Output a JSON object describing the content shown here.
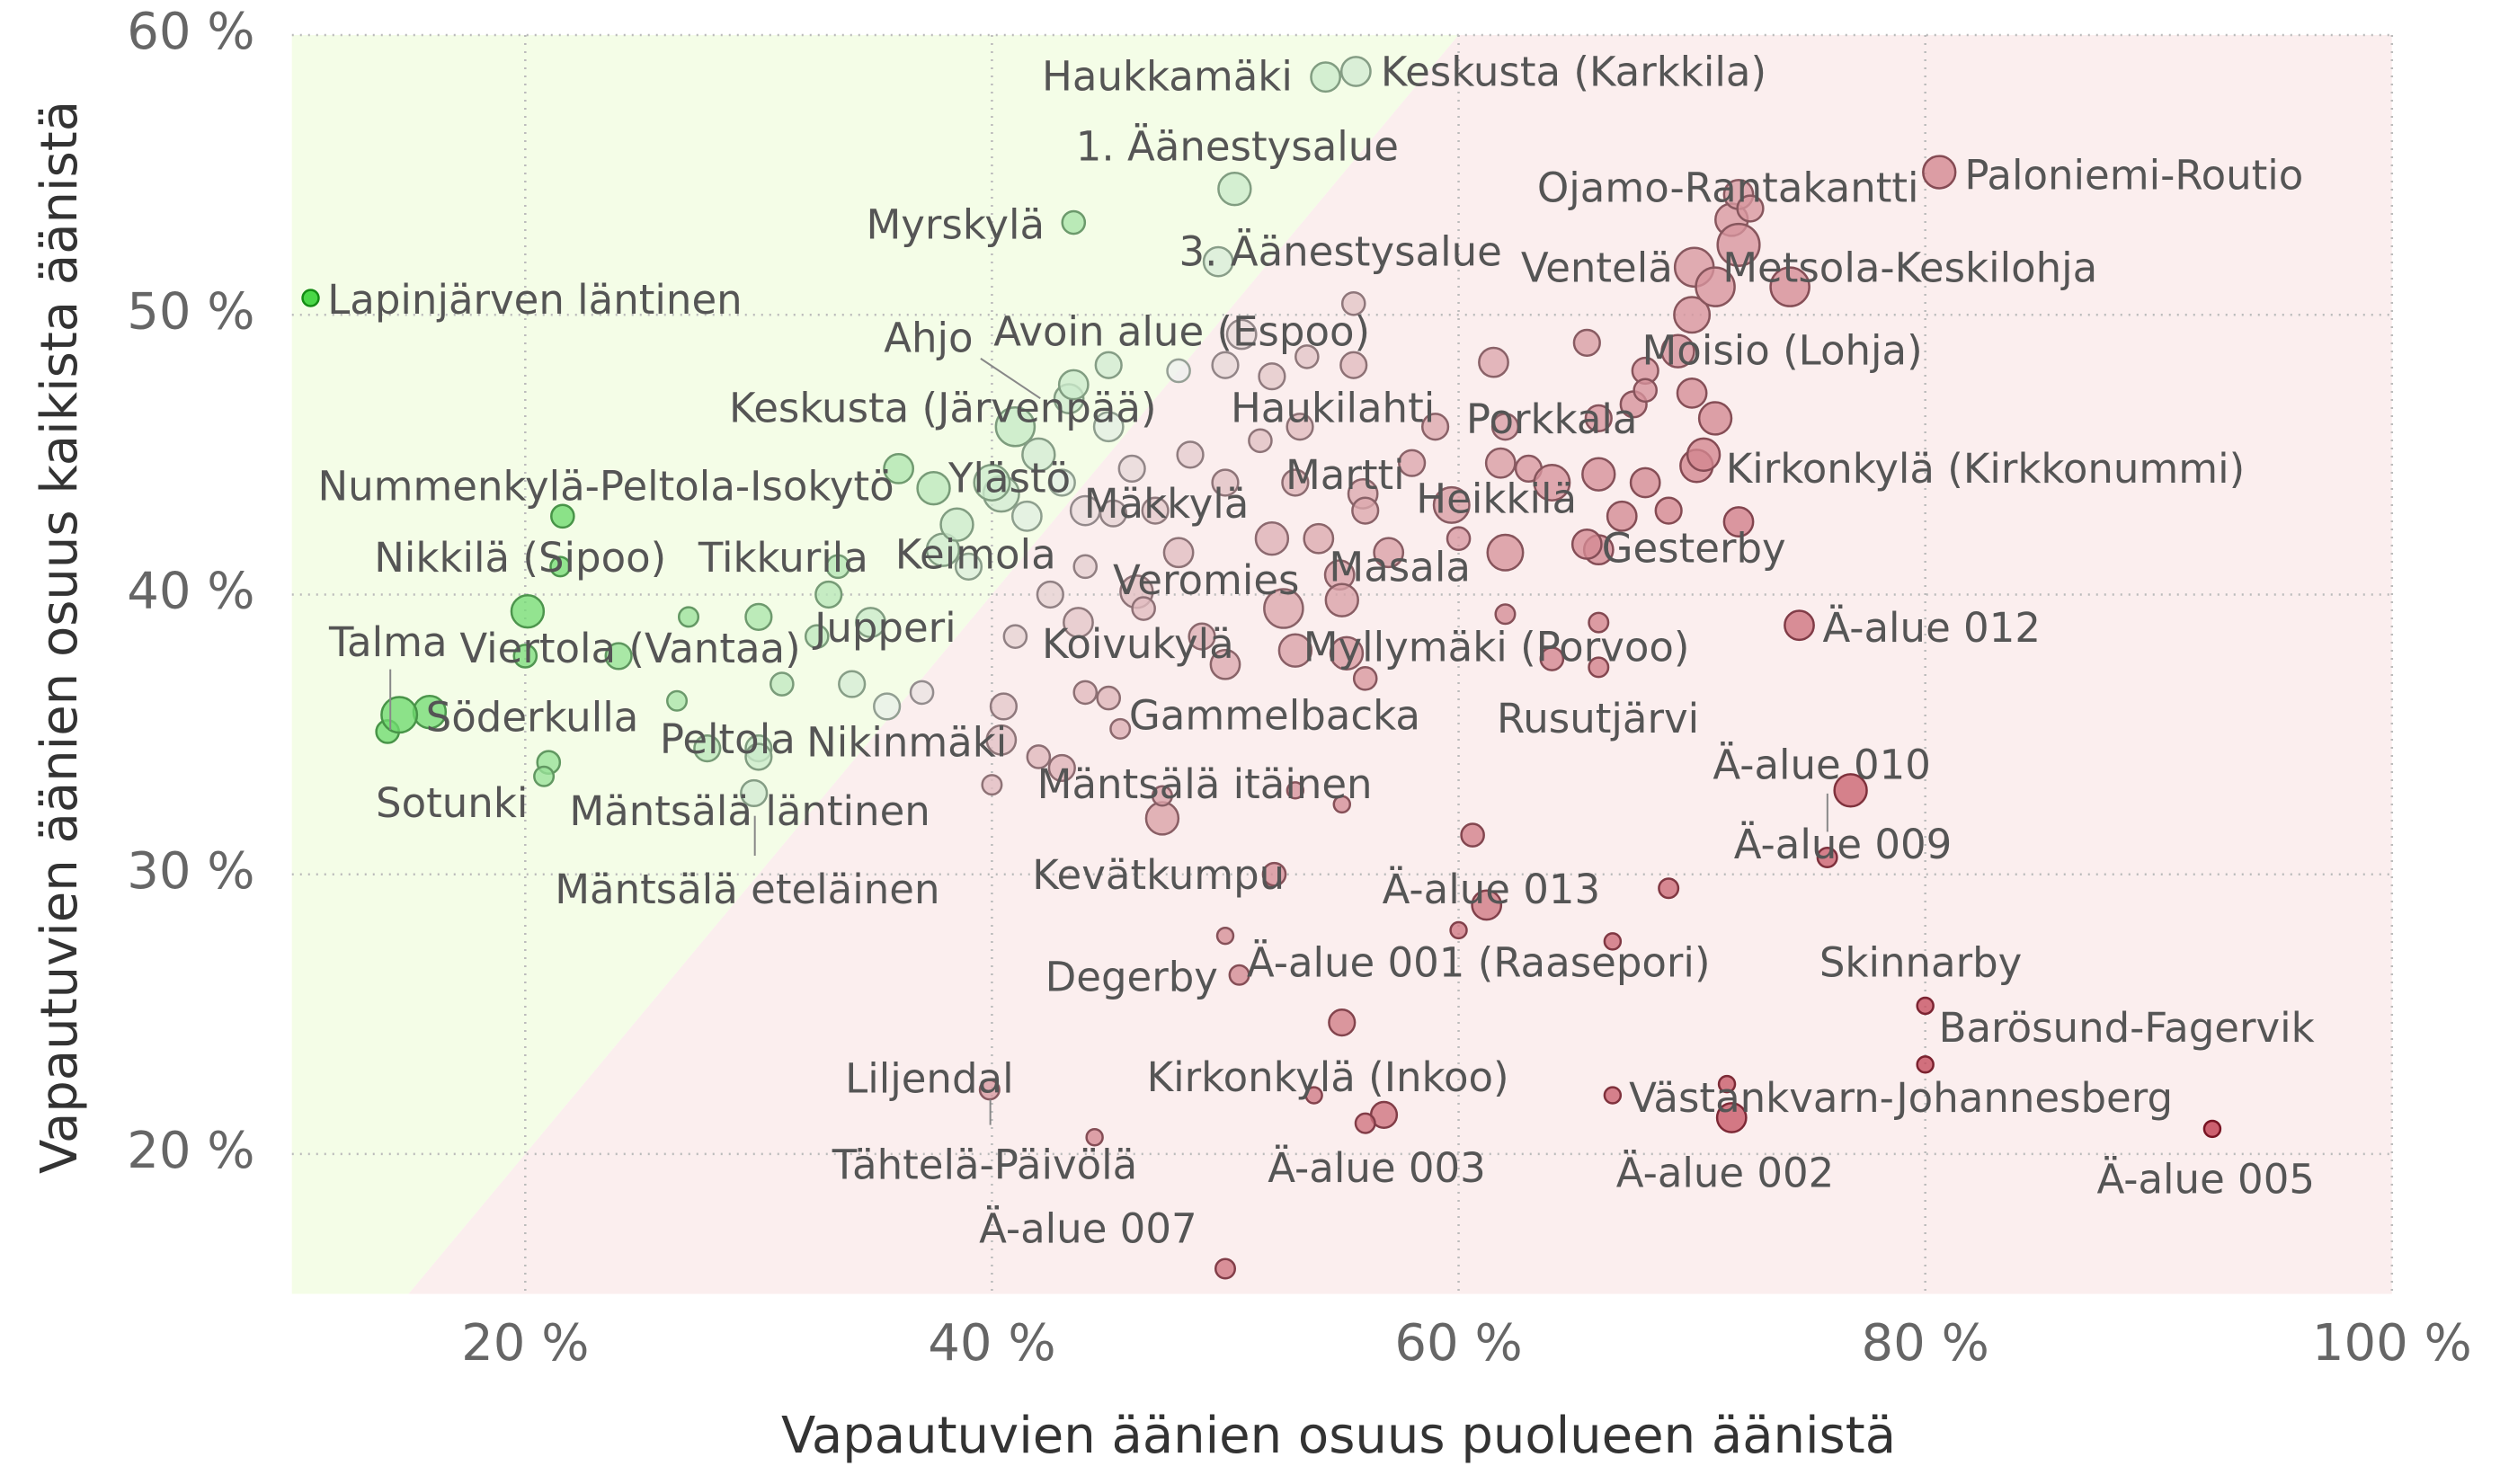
{
  "chart_data": {
    "type": "scatter",
    "x_label": "Vapautuvien äänien osuus puolueen äänistä",
    "y_label": "Vapautuvien äänien osuus kaikista äänistä",
    "xlim": [
      10,
      100
    ],
    "ylim": [
      15,
      60
    ],
    "xticks": [
      {
        "value": 20,
        "label": "20 %"
      },
      {
        "value": 40,
        "label": "40 %"
      },
      {
        "value": 60,
        "label": "60 %"
      },
      {
        "value": 80,
        "label": "80 %"
      },
      {
        "value": 100,
        "label": "100 %"
      }
    ],
    "yticks": [
      {
        "value": 20,
        "label": "20 %"
      },
      {
        "value": 30,
        "label": "30 %"
      },
      {
        "value": 40,
        "label": "40 %"
      },
      {
        "value": 50,
        "label": "50 %"
      },
      {
        "value": 60,
        "label": "60 %"
      }
    ],
    "grid": true,
    "region_colors": {
      "above": "#f4fde7",
      "below": "#fbeeee"
    },
    "color_scale": {
      "low": "#c0394b",
      "mid": "#eef0ee",
      "high": "#18cc18"
    },
    "labels": [
      "Lapinjärven läntinen",
      "Haukkamäki",
      "Keskusta (Karkkila)",
      "1. Äänestysalue",
      "Myrskylä",
      "3. Äänestysalue",
      "Paloniemi-Routio",
      "Ojamo-Rantakantti",
      "Ventelä",
      "Metsola-Keskilohja",
      "Avoin alue (Espoo)",
      "Ahjo",
      "Moisio (Lohja)",
      "Keskusta (Järvenpää)",
      "Haukilahti",
      "Porkkala",
      "Kirkonkylä (Kirkkonummi)",
      "Nummenkylä-Peltola-Isokytö",
      "Ylästö",
      "Martti",
      "Mäkkylä",
      "Heikkilä",
      "Nikkilä (Sipoo)",
      "Tikkurila",
      "Keimola",
      "Gesterby",
      "Veromies",
      "Masala",
      "Ä-alue 012",
      "Talma",
      "Viertola (Vantaa)",
      "Jupperi",
      "Koivukylä",
      "Myllymäki (Porvoo)",
      "Söderkulla",
      "Gammelbacka",
      "Rusutjärvi",
      "Peltola",
      "Nikinmäki",
      "Ä-alue 010",
      "Mäntsälä itäinen",
      "Sotunki",
      "Mäntsälä läntinen",
      "Ä-alue 009",
      "Mäntsälä eteläinen",
      "Kevätkumpu",
      "Ä-alue 013",
      "Degerby",
      "Ä-alue 001 (Raasepori)",
      "Skinnarby",
      "Barösund-Fagervik",
      "Liljendal",
      "Kirkonkylä (Inkoo)",
      "Västankvarn-Johannesberg",
      "Tähtelä-Päivölä",
      "Ä-alue 003",
      "Ä-alue 002",
      "Ä-alue 005",
      "Ä-alue 007",
      null,
      null,
      null,
      null,
      null,
      null,
      null,
      null,
      null,
      null,
      null,
      null,
      null,
      null,
      null,
      null,
      null,
      null,
      null,
      null,
      null,
      null,
      null,
      null,
      null,
      null,
      null,
      null,
      null,
      null,
      null,
      null,
      null,
      null,
      null,
      null,
      null,
      null,
      null,
      null,
      null,
      null,
      null,
      null,
      null,
      null,
      null,
      null,
      null,
      null,
      null,
      null,
      null,
      null,
      null,
      null,
      null,
      null,
      null,
      null,
      null,
      null,
      null,
      null,
      null,
      null,
      null,
      null,
      null,
      null,
      null,
      null,
      null,
      null,
      null,
      null,
      null,
      null,
      null,
      null,
      null,
      null,
      null,
      null,
      null,
      null,
      null,
      null,
      null,
      null,
      null,
      null,
      null,
      null,
      null,
      null,
      null,
      null,
      null,
      null
    ],
    "x": [
      10.8,
      54.3,
      55.6,
      50.4,
      43.5,
      49.7,
      80.6,
      71.7,
      70.1,
      74.2,
      50.7,
      43.3,
      69.4,
      41.0,
      53.2,
      61.8,
      70.2,
      21.6,
      40.4,
      55.9,
      45.2,
      59.7,
      21.5,
      33.4,
      37.9,
      66.0,
      46.2,
      54.9,
      74.6,
      14.1,
      20.1,
      34.8,
      43.7,
      55.2,
      15.9,
      45.5,
      66.0,
      27.8,
      40.4,
      76.8,
      47.3,
      14.6,
      30.0,
      75.8,
      29.8,
      52.1,
      61.2,
      50.6,
      60.0,
      80.0,
      80.0,
      39.9,
      53.8,
      66.6,
      44.4,
      56.8,
      71.7,
      92.3,
      50.0,
      36,
      37.5,
      38.5,
      39,
      40,
      41.5,
      42,
      43,
      44,
      45,
      46,
      47,
      48,
      44,
      42.5,
      41,
      43.5,
      45,
      48,
      50,
      52,
      53.5,
      55.5,
      55.5,
      48.5,
      50,
      51.5,
      53,
      54,
      56,
      57,
      58,
      52,
      55,
      52.5,
      50,
      53,
      56,
      34,
      35.5,
      37,
      31,
      32.5,
      33,
      30,
      27,
      26.5,
      21,
      20.8,
      24,
      20,
      30,
      40.5,
      44,
      49,
      43,
      40,
      42,
      59,
      61.5,
      62,
      63,
      64,
      62,
      65.5,
      66,
      67,
      68,
      69,
      66,
      67.5,
      65.5,
      68,
      70,
      71,
      70,
      71,
      72,
      72,
      72.5,
      72,
      68,
      60,
      62,
      66,
      64,
      70.5,
      55,
      53,
      60.6,
      69,
      66.6,
      50,
      55,
      56,
      71.5,
      47.3,
      45,
      46.5
    ],
    "y": [
      50.6,
      58.5,
      58.7,
      54.5,
      53.3,
      51.9,
      55.1,
      53.4,
      51.7,
      51.0,
      49.3,
      47.0,
      48.7,
      46.0,
      46.0,
      44.7,
      44.6,
      42.8,
      43.6,
      43.6,
      42.9,
      43.2,
      41.0,
      41.0,
      41.6,
      41.6,
      40.1,
      40.7,
      38.9,
      35.1,
      39.4,
      39.0,
      39.0,
      37.9,
      35.8,
      35.2,
      37.4,
      34.5,
      34.8,
      33.0,
      32.0,
      35.7,
      34.5,
      30.6,
      32.9,
      30.0,
      28.9,
      26.4,
      28.0,
      25.3,
      23.2,
      22.3,
      22.1,
      22.1,
      20.6,
      21.4,
      21.3,
      20.9,
      15.9,
      44.5,
      43.8,
      42.5,
      41,
      44,
      42.8,
      45,
      44,
      43,
      46,
      44.5,
      43,
      41.5,
      41,
      40,
      38.5,
      47.5,
      48.2,
      48,
      48.2,
      47.8,
      48.5,
      48.2,
      50.4,
      45,
      44,
      45.5,
      44,
      42,
      43,
      41.5,
      44.7,
      42,
      39.8,
      39.5,
      37.5,
      38,
      37,
      36.8,
      36,
      36.5,
      36.8,
      38.5,
      40,
      39.2,
      39.2,
      36.2,
      34,
      33.5,
      37.8,
      37.8,
      34.2,
      36,
      36.5,
      38.5,
      33.8,
      33.2,
      34.2,
      46,
      48.3,
      46,
      44.5,
      44,
      41.5,
      41.8,
      44.3,
      42.8,
      44,
      43,
      46.3,
      46.8,
      49,
      48,
      47.2,
      46.3,
      50,
      51,
      52.5,
      54.3,
      53.8,
      42.6,
      47.3,
      42,
      39.3,
      39,
      37.7,
      45,
      32.5,
      33,
      31.4,
      29.5,
      27.6,
      27.8,
      24.7,
      21.1,
      22.5,
      32.8,
      36.3,
      39.5
    ],
    "sizes": [
      5,
      9,
      9,
      10,
      7,
      9,
      10,
      10,
      12,
      12,
      9,
      9,
      10,
      12,
      8,
      9,
      10,
      7,
      11,
      9,
      8,
      11,
      6,
      7,
      10,
      9,
      10,
      9,
      9,
      7,
      10,
      9,
      9,
      10,
      10,
      6,
      6,
      8,
      9,
      10,
      10,
      11,
      8,
      6,
      8,
      7,
      9,
      6,
      5,
      5,
      5,
      6,
      5,
      5,
      5,
      8,
      9,
      5,
      6,
      9,
      10,
      10,
      8,
      11,
      9,
      10,
      8,
      9,
      9,
      8,
      8,
      9,
      7,
      8,
      7,
      9,
      8,
      7,
      8,
      8,
      7,
      8,
      7,
      8,
      8,
      7,
      8,
      9,
      8,
      9,
      8,
      10,
      10,
      12,
      9,
      10,
      7,
      8,
      8,
      7,
      7,
      7,
      8,
      8,
      6,
      6,
      7,
      6,
      8,
      7,
      8,
      8,
      7,
      8,
      8,
      6,
      7,
      8,
      9,
      8,
      8,
      11,
      11,
      9,
      10,
      9,
      9,
      8,
      8,
      8,
      8,
      8,
      9,
      10,
      11,
      12,
      13,
      9,
      8,
      9,
      7,
      7,
      6,
      6,
      7,
      10,
      5,
      5,
      7,
      6,
      5,
      5,
      8,
      6,
      5,
      6,
      7,
      7
    ]
  }
}
